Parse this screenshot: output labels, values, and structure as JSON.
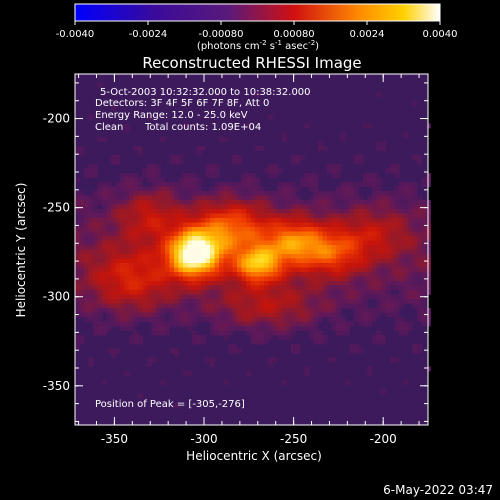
{
  "chart_data": {
    "type": "heatmap",
    "title": "Reconstructed RHESSI Image",
    "colorbar": {
      "ticks": [
        "-0.0040",
        "-0.0024",
        "-0.00080",
        "0.00080",
        "0.0024",
        "0.0040"
      ],
      "range": [
        -0.004,
        0.004
      ],
      "unit_prefix": "(photons cm",
      "unit_exp1": "-2",
      "unit_mid": " s",
      "unit_exp2": "-1",
      "unit_asec": " asec",
      "unit_exp3": "-2",
      "unit_close": ")",
      "colors": [
        "#0000ff",
        "#4b0082",
        "#7a1fa0",
        "#ff0000",
        "#ffa500",
        "#ffffff"
      ]
    },
    "annotations": {
      "time": "5-Oct-2003 10:32:32.000 to 10:38:32.000",
      "detectors": "Detectors: 3F 4F 5F 6F 7F 8F, Att 0",
      "energy": "Energy Range: 12.0 - 25.0 keV",
      "method": "Clean",
      "counts": "Total counts: 1.09E+04",
      "peak": "Position of Peak = [-305,-276]"
    },
    "xlabel": "Heliocentric X (arcsec)",
    "ylabel": "Heliocentric Y (arcsec)",
    "xlim": [
      -372,
      -175
    ],
    "ylim": [
      -372,
      -175
    ],
    "xticks": [
      "-350",
      "-300",
      "-250",
      "-200"
    ],
    "yticks": [
      "-200",
      "-250",
      "-300",
      "-350"
    ],
    "peak": [
      -305,
      -276
    ],
    "sources": [
      {
        "x": -305,
        "y": -276,
        "sx": 10,
        "sy": 9,
        "a": 1.0
      },
      {
        "x": -270,
        "y": -282,
        "sx": 9,
        "sy": 7,
        "a": 0.62
      },
      {
        "x": -250,
        "y": -270,
        "sx": 12,
        "sy": 9,
        "a": 0.5
      },
      {
        "x": -285,
        "y": -262,
        "sx": 14,
        "sy": 10,
        "a": 0.45
      },
      {
        "x": -228,
        "y": -275,
        "sx": 12,
        "sy": 9,
        "a": 0.35
      },
      {
        "x": -340,
        "y": -290,
        "sx": 16,
        "sy": 12,
        "a": 0.28
      },
      {
        "x": -330,
        "y": -255,
        "sx": 12,
        "sy": 10,
        "a": 0.22
      },
      {
        "x": -205,
        "y": -265,
        "sx": 14,
        "sy": 10,
        "a": 0.18
      },
      {
        "x": -265,
        "y": -305,
        "sx": 20,
        "sy": 9,
        "a": 0.2
      }
    ]
  },
  "footer": {
    "timestamp": "6-May-2022 03:47"
  }
}
